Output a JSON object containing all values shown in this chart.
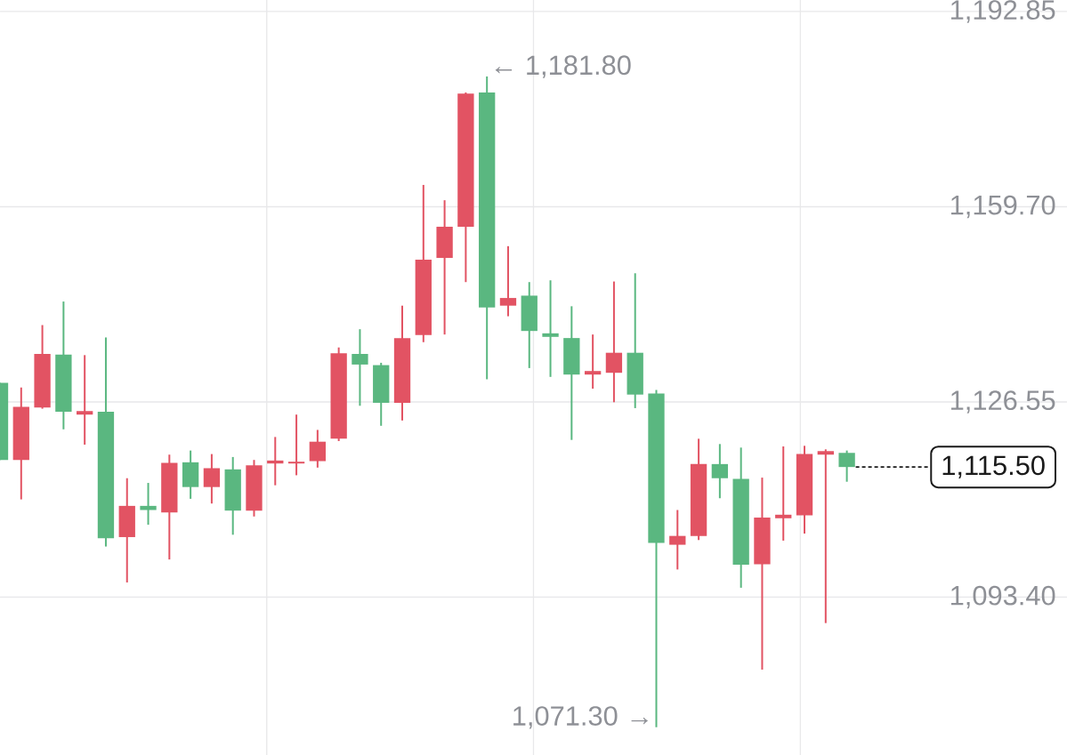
{
  "chart_data": {
    "type": "candlestick",
    "categories": [
      null,
      null,
      null,
      null,
      null,
      null,
      null,
      null,
      null,
      null,
      null,
      null,
      null,
      null,
      null,
      null,
      null,
      null,
      null,
      null,
      null,
      null,
      null,
      null,
      null,
      null,
      null,
      null,
      null,
      null,
      null,
      null,
      null,
      null,
      null,
      null,
      null,
      null,
      null,
      null,
      null
    ],
    "ohlc": [
      [
        1129.8,
        1129.8,
        1116.7,
        1116.7
      ],
      [
        1116.7,
        1129.0,
        1110.0,
        1125.7
      ],
      [
        1125.6,
        1139.6,
        1125.4,
        1134.7
      ],
      [
        1134.6,
        1143.6,
        1121.9,
        1124.9
      ],
      [
        1124.4,
        1134.5,
        1119.3,
        1125.0
      ],
      [
        1124.9,
        1137.5,
        1102.0,
        1103.4
      ],
      [
        1103.6,
        1113.6,
        1095.9,
        1108.9
      ],
      [
        1108.9,
        1112.8,
        1105.7,
        1108.2
      ],
      [
        1107.8,
        1117.6,
        1099.8,
        1116.2
      ],
      [
        1116.3,
        1118.3,
        1110.1,
        1112.1
      ],
      [
        1112.1,
        1117.7,
        1109.3,
        1115.3
      ],
      [
        1115.1,
        1117.2,
        1104.0,
        1108.1
      ],
      [
        1108.1,
        1116.7,
        1107.1,
        1115.8
      ],
      [
        1116.1,
        1120.6,
        1112.4,
        1116.6
      ],
      [
        1116.1,
        1124.4,
        1114.1,
        1116.4
      ],
      [
        1116.5,
        1121.8,
        1115.4,
        1119.8
      ],
      [
        1120.3,
        1135.8,
        1119.9,
        1134.8
      ],
      [
        1134.7,
        1138.9,
        1125.9,
        1132.9
      ],
      [
        1132.8,
        1133.2,
        1122.5,
        1126.4
      ],
      [
        1126.4,
        1142.9,
        1123.4,
        1137.4
      ],
      [
        1137.9,
        1163.4,
        1136.7,
        1150.7
      ],
      [
        1151.0,
        1160.8,
        1138.0,
        1156.3
      ],
      [
        1156.3,
        1179.1,
        1146.9,
        1178.9
      ],
      [
        1179.1,
        1181.8,
        1130.4,
        1142.6
      ],
      [
        1142.9,
        1153.0,
        1141.1,
        1144.2
      ],
      [
        1144.6,
        1146.9,
        1132.3,
        1138.6
      ],
      [
        1138.2,
        1147.2,
        1130.8,
        1137.6
      ],
      [
        1137.4,
        1142.8,
        1120.1,
        1131.2
      ],
      [
        1131.2,
        1138.0,
        1128.8,
        1131.8
      ],
      [
        1131.5,
        1147.0,
        1126.5,
        1134.9
      ],
      [
        1134.9,
        1148.4,
        1125.5,
        1127.8
      ],
      [
        1128.0,
        1128.6,
        1071.3,
        1102.6
      ],
      [
        1102.3,
        1108.2,
        1098.1,
        1103.8
      ],
      [
        1103.8,
        1120.3,
        1103.1,
        1116.0
      ],
      [
        1116.0,
        1119.4,
        1110.2,
        1113.6
      ],
      [
        1113.5,
        1118.8,
        1095.0,
        1098.9
      ],
      [
        1099.0,
        1113.7,
        1081.1,
        1106.9
      ],
      [
        1106.8,
        1119.0,
        1103.0,
        1107.4
      ],
      [
        1107.3,
        1119.1,
        1104.2,
        1117.7
      ],
      [
        1117.6,
        1118.5,
        1089.0,
        1118.2
      ],
      [
        1117.9,
        1118.3,
        1113.0,
        1115.5
      ]
    ],
    "colors": [
      "#5ab780",
      "#e25363",
      "#e25363",
      "#5ab780",
      "#e25363",
      "#5ab780",
      "#e25363",
      "#5ab780",
      "#e25363",
      "#5ab780",
      "#e25363",
      "#5ab780",
      "#e25363",
      "#e25363",
      "#e25363",
      "#e25363",
      "#e25363",
      "#5ab780",
      "#5ab780",
      "#e25363",
      "#e25363",
      "#e25363",
      "#e25363",
      "#5ab780",
      "#e25363",
      "#5ab780",
      "#5ab780",
      "#5ab780",
      "#e25363",
      "#e25363",
      "#5ab780",
      "#5ab780",
      "#e25363",
      "#e25363",
      "#5ab780",
      "#5ab780",
      "#e25363",
      "#e25363",
      "#e25363",
      "#e25363",
      "#5ab780"
    ],
    "ylim": [
      1066.6,
      1194.8
    ],
    "yticks": [
      {
        "value": 1093.4,
        "label": "1,093.40"
      },
      {
        "value": 1126.55,
        "label": "1,126.55"
      },
      {
        "value": 1159.7,
        "label": "1,159.70"
      },
      {
        "value": 1192.85,
        "label": "1,192.85"
      }
    ],
    "grid": true,
    "ref_lines": [
      {
        "axis": "y",
        "value": 1115.5,
        "label": "1,115.50",
        "line_style": "dashed",
        "color": "#1a1a1a"
      }
    ],
    "annotations": [
      "← 1,181.80",
      "1,071.30 →"
    ]
  }
}
